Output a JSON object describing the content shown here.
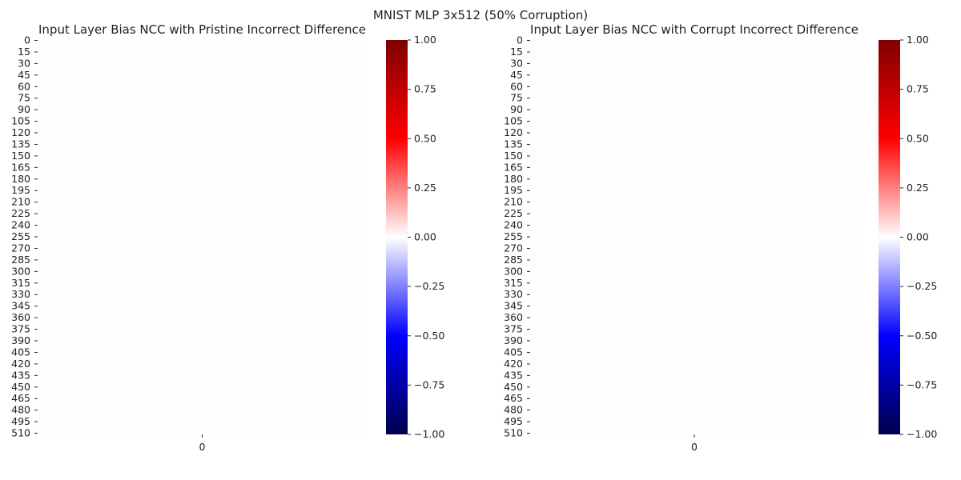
{
  "figure": {
    "suptitle": "MNIST MLP 3x512 (50% Corruption)"
  },
  "chart_data": [
    {
      "type": "heatmap",
      "title": "Input Layer Bias NCC with Pristine Incorrect Difference",
      "xlabel": "",
      "ylabel": "",
      "rows": 512,
      "cols": 1,
      "x_ticks": [
        "0"
      ],
      "y_ticks": [
        "0",
        "15",
        "30",
        "45",
        "60",
        "75",
        "90",
        "105",
        "120",
        "135",
        "150",
        "165",
        "180",
        "195",
        "210",
        "225",
        "240",
        "255",
        "270",
        "285",
        "300",
        "315",
        "330",
        "345",
        "360",
        "375",
        "390",
        "405",
        "420",
        "435",
        "450",
        "465",
        "480",
        "495",
        "510"
      ],
      "cell_value": 0.0,
      "colormap": "seismic",
      "colorbar": {
        "range": [
          -1.0,
          1.0
        ],
        "ticks": [
          "1.00",
          "0.75",
          "0.50",
          "0.25",
          "0.00",
          "−0.25",
          "−0.50",
          "−0.75",
          "−1.00"
        ],
        "tick_values": [
          1.0,
          0.75,
          0.5,
          0.25,
          0.0,
          -0.25,
          -0.5,
          -0.75,
          -1.0
        ]
      }
    },
    {
      "type": "heatmap",
      "title": "Input Layer Bias NCC with Corrupt Incorrect Difference",
      "xlabel": "",
      "ylabel": "",
      "rows": 512,
      "cols": 1,
      "x_ticks": [
        "0"
      ],
      "y_ticks": [
        "0",
        "15",
        "30",
        "45",
        "60",
        "75",
        "90",
        "105",
        "120",
        "135",
        "150",
        "165",
        "180",
        "195",
        "210",
        "225",
        "240",
        "255",
        "270",
        "285",
        "300",
        "315",
        "330",
        "345",
        "360",
        "375",
        "390",
        "405",
        "420",
        "435",
        "450",
        "465",
        "480",
        "495",
        "510"
      ],
      "cell_value": 0.0,
      "colormap": "seismic",
      "colorbar": {
        "range": [
          -1.0,
          1.0
        ],
        "ticks": [
          "1.00",
          "0.75",
          "0.50",
          "0.25",
          "0.00",
          "−0.25",
          "−0.50",
          "−0.75",
          "−1.00"
        ],
        "tick_values": [
          1.0,
          0.75,
          0.5,
          0.25,
          0.0,
          -0.25,
          -0.5,
          -0.75,
          -1.0
        ]
      }
    }
  ]
}
